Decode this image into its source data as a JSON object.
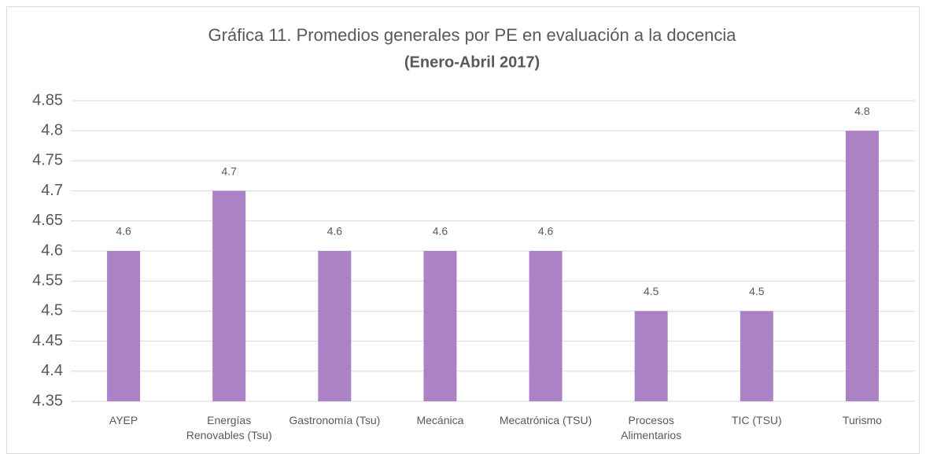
{
  "chart_data": {
    "type": "bar",
    "title": "Gráfica 11. Promedios generales por PE en evaluación a la docencia",
    "subtitle": "(Enero-Abril 2017)",
    "categories": [
      "AYEP",
      "Energías Renovables  (Tsu)",
      "Gastronomía (Tsu)",
      "Mecánica",
      "Mecatrónica (TSU)",
      "Procesos Alimentarios",
      "TIC (TSU)",
      "Turismo"
    ],
    "values": [
      4.6,
      4.7,
      4.6,
      4.6,
      4.6,
      4.5,
      4.5,
      4.8
    ],
    "color": "#ab82c5",
    "ylim": [
      4.35,
      4.85
    ],
    "yticks": [
      4.35,
      4.4,
      4.45,
      4.5,
      4.55,
      4.6,
      4.65,
      4.7,
      4.75,
      4.8,
      4.85
    ],
    "grid": true
  }
}
